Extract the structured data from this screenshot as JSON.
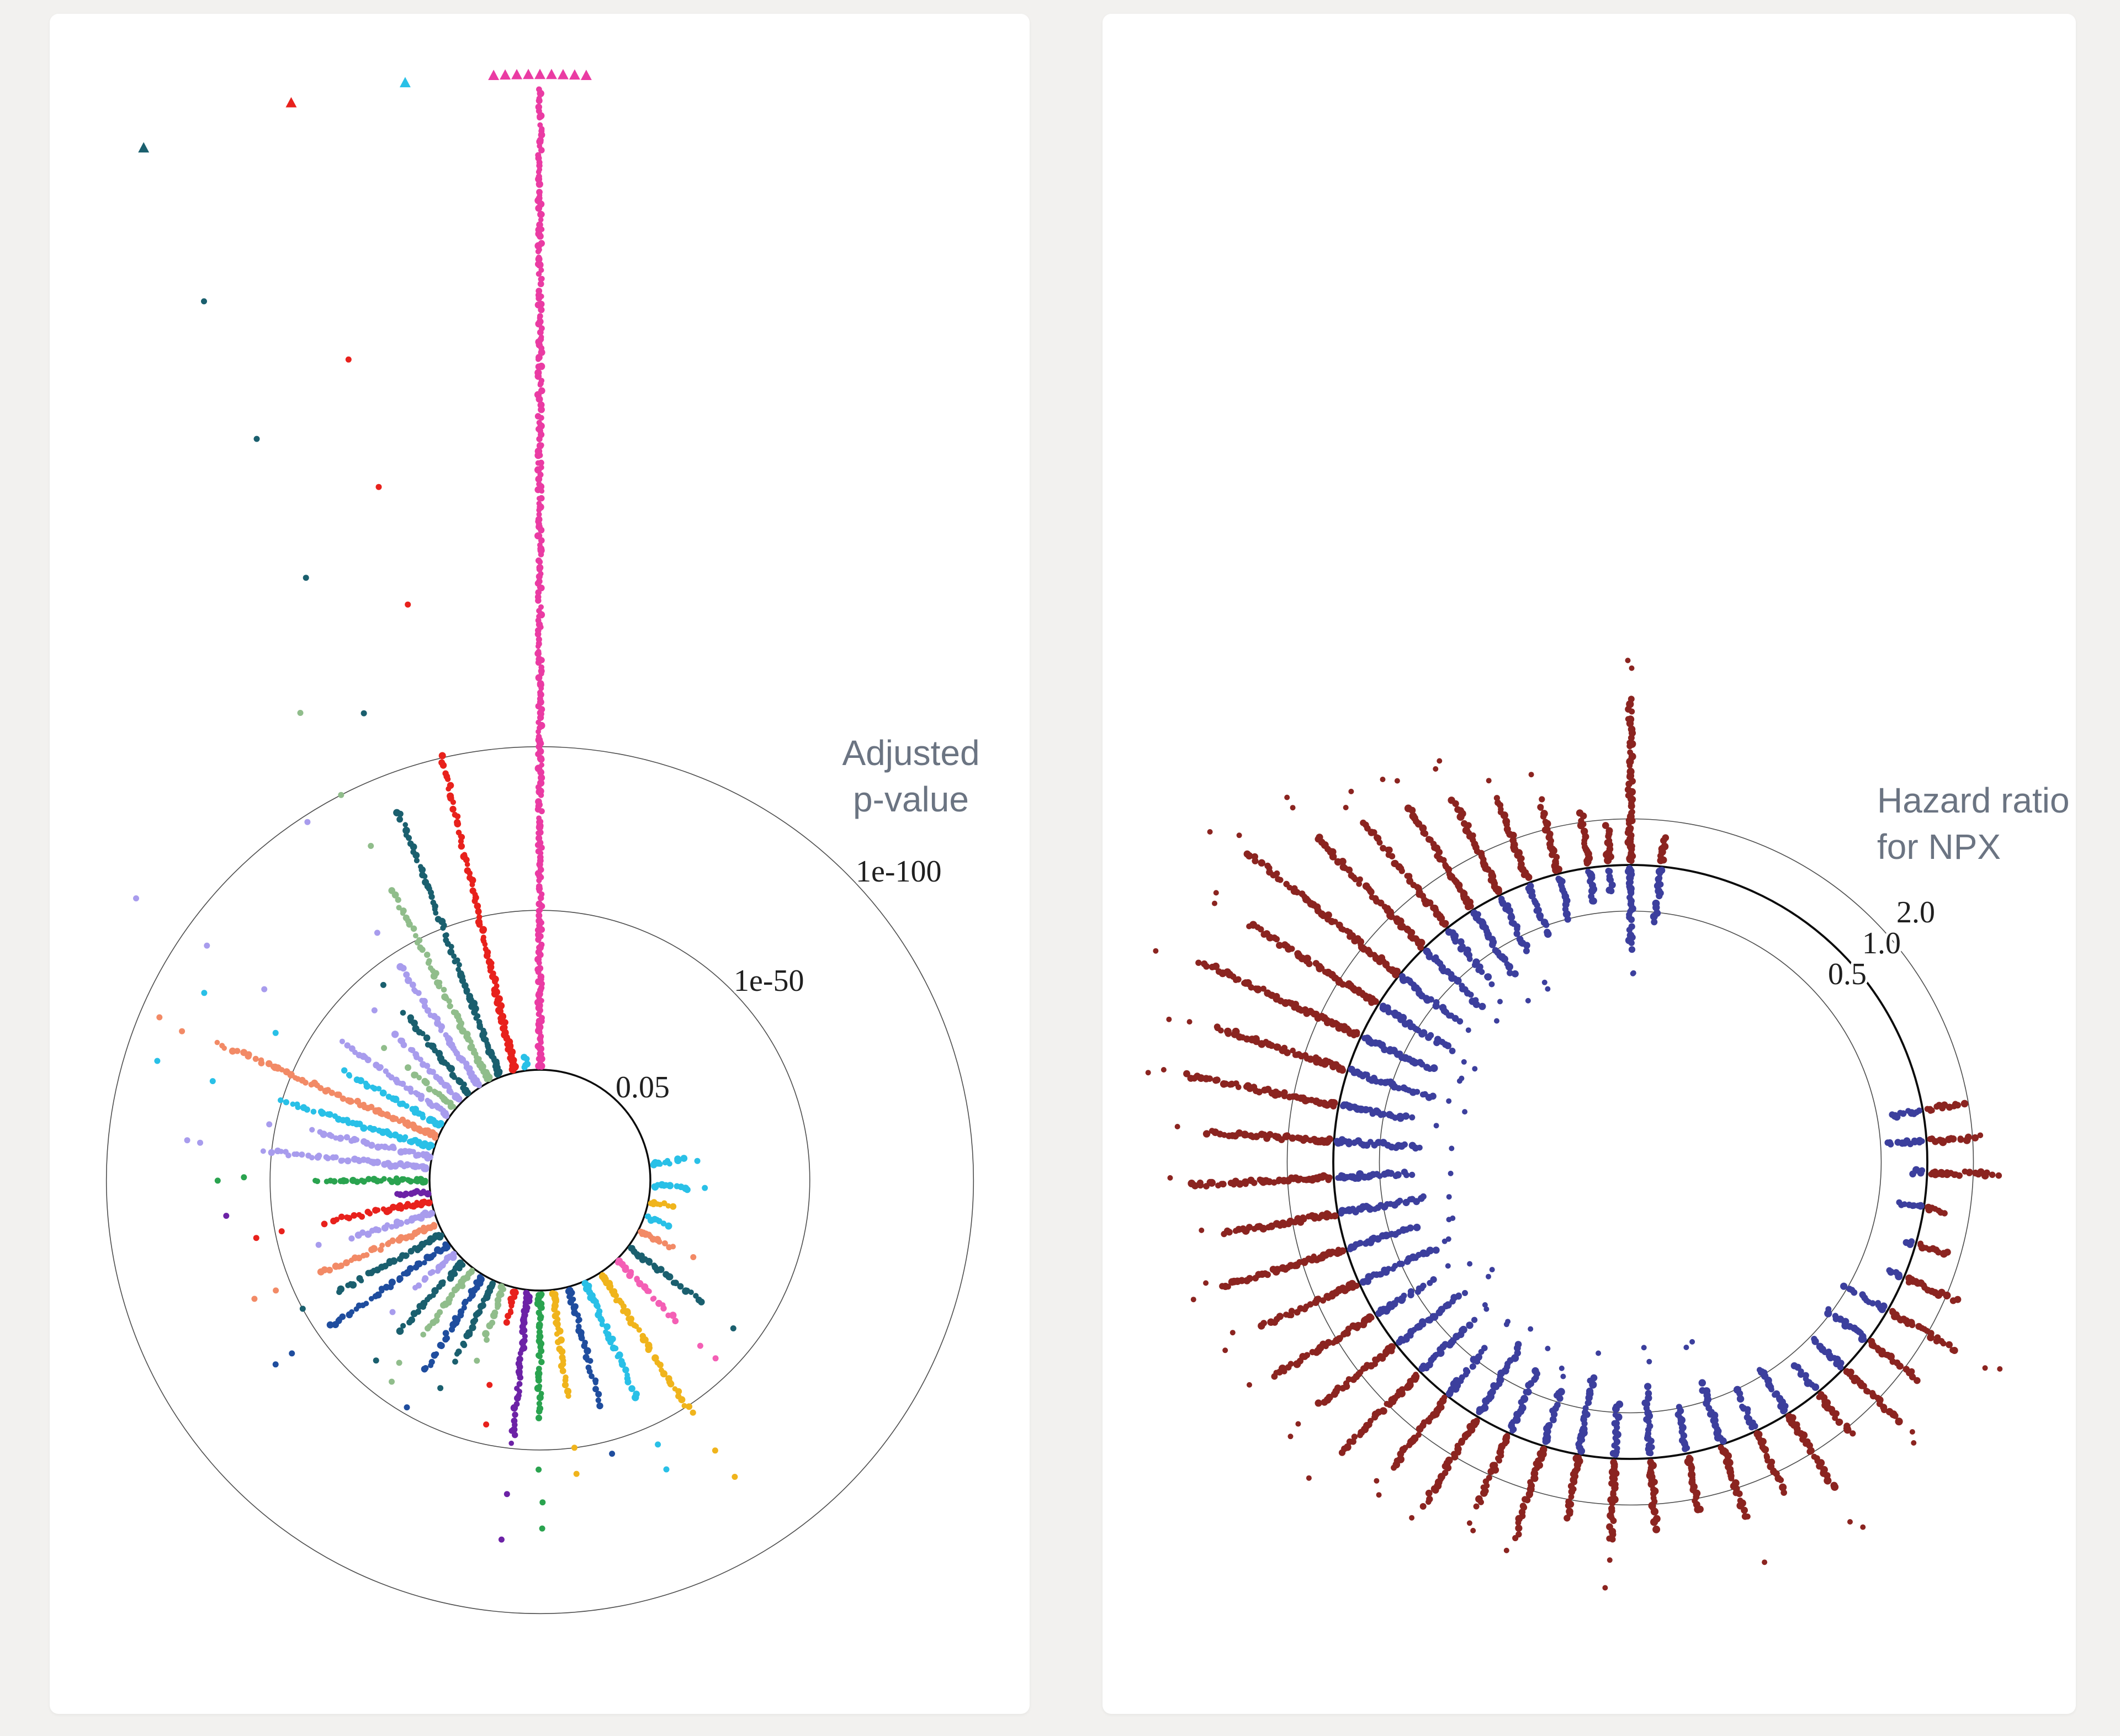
{
  "page": {
    "background_color": "#f2f1ef",
    "card_background_color": "#ffffff",
    "title_color": "#6b7482",
    "ring_label_color": "#1f1f1f"
  },
  "chart_data": [
    {
      "id": "adjusted-p-value-circular-manhattan",
      "type": "scatter",
      "subtype": "polar_circular_manhattan",
      "title": "Adjusted p-value",
      "title_lines": [
        "Adjusted",
        "p-value"
      ],
      "radial_axis": {
        "scale": "-log10(adjusted p-value), linear in log units, increasing outward",
        "rings": [
          {
            "label": "0.05",
            "neglog10p": 1.301,
            "emphasis": true
          },
          {
            "label": "1e-50",
            "neglog10p": 50,
            "emphasis": false
          },
          {
            "label": "1e-100",
            "neglog10p": 100,
            "emphasis": false
          }
        ],
        "clip_neglog10p": 305,
        "clip_marker": "triangle"
      },
      "legend_position": "upper-right inside panel",
      "grid": "concentric rings only",
      "palette": {
        "pink": "#ea3ba3",
        "pink2": "#f45fb5",
        "red": "#e8211c",
        "teal": "#1a5f6e",
        "sage": "#90bd8b",
        "lavender": "#a89ced",
        "cyan": "#29c0e7",
        "salmon": "#f28a66",
        "green": "#2aa34f",
        "purple": "#6c22a6",
        "navy": "#1f4d9e",
        "gold": "#f0b41c"
      },
      "rays": [
        {
          "angle": 0,
          "color": "pink",
          "max_logp": 300,
          "extra_logp": [],
          "clipped_points": 9
        },
        {
          "angle": 353,
          "color": "cyan",
          "max_logp": 6,
          "extra_logp": [],
          "clipped_points": 1
        },
        {
          "angle": 347,
          "color": "red",
          "max_logp": 100,
          "extra_logp": [
            148,
            185,
            225
          ],
          "clipped_points": 1
        },
        {
          "angle": 339,
          "color": "teal",
          "max_logp": 88,
          "extra_logp": [
            120,
            165,
            210,
            255
          ],
          "clipped_points": 1
        },
        {
          "angle": 333,
          "color": "sage",
          "max_logp": 66,
          "extra_logp": [
            82,
            100,
            128
          ],
          "clipped_points": 0
        },
        {
          "angle": 327,
          "color": "lavender",
          "max_logp": 45,
          "extra_logp": [
            58,
            98
          ],
          "clipped_points": 0
        },
        {
          "angle": 321,
          "color": "teal",
          "max_logp": 33,
          "extra_logp": [
            44
          ],
          "clipped_points": 0
        },
        {
          "angle": 315,
          "color": "lavender",
          "max_logp": 30,
          "extra_logp": [
            40
          ],
          "clipped_points": 0
        },
        {
          "angle": 310,
          "color": "sage",
          "max_logp": 20,
          "extra_logp": [
            30
          ],
          "clipped_points": 0
        },
        {
          "angle": 305,
          "color": "lavender",
          "max_logp": 42,
          "extra_logp": [
            70,
            92,
            118
          ],
          "clipped_points": 0
        },
        {
          "angle": 299,
          "color": "cyan",
          "max_logp": 36,
          "extra_logp": [
            60,
            85
          ],
          "clipped_points": 0
        },
        {
          "angle": 293,
          "color": "salmon",
          "max_logp": 74,
          "extra_logp": [
            86,
            94
          ],
          "clipped_points": 0
        },
        {
          "angle": 287,
          "color": "cyan",
          "max_logp": 50,
          "extra_logp": [
            72,
            90
          ],
          "clipped_points": 0
        },
        {
          "angle": 282,
          "color": "lavender",
          "max_logp": 38,
          "extra_logp": [
            52
          ],
          "clipped_points": 0
        },
        {
          "angle": 276,
          "color": "lavender",
          "max_logp": 52,
          "extra_logp": [
            72,
            76
          ],
          "clipped_points": 0
        },
        {
          "angle": 270,
          "color": "green",
          "max_logp": 36,
          "extra_logp": [
            58,
            66
          ],
          "clipped_points": 0
        },
        {
          "angle": 264,
          "color": "purple",
          "max_logp": 12,
          "extra_logp": [
            64
          ],
          "clipped_points": 0
        },
        {
          "angle": 259,
          "color": "red",
          "max_logp": 34,
          "extra_logp": [
            48,
            56
          ],
          "clipped_points": 0
        },
        {
          "angle": 253,
          "color": "lavender",
          "max_logp": 27,
          "extra_logp": [
            38
          ],
          "clipped_points": 0
        },
        {
          "angle": 247,
          "color": "salmon",
          "max_logp": 40,
          "extra_logp": [
            55,
            62
          ],
          "clipped_points": 0
        },
        {
          "angle": 241,
          "color": "teal",
          "max_logp": 38,
          "extra_logp": [
            50
          ],
          "clipped_points": 0
        },
        {
          "angle": 235,
          "color": "navy",
          "max_logp": 46,
          "extra_logp": [
            60,
            66
          ],
          "clipped_points": 0
        },
        {
          "angle": 229,
          "color": "lavender",
          "max_logp": 17,
          "extra_logp": [
            28
          ],
          "clipped_points": 0
        },
        {
          "angle": 223,
          "color": "teal",
          "max_logp": 30,
          "extra_logp": [
            42
          ],
          "clipped_points": 0
        },
        {
          "angle": 217,
          "color": "sage",
          "max_logp": 26,
          "extra_logp": [
            38,
            44
          ],
          "clipped_points": 0
        },
        {
          "angle": 211,
          "color": "navy",
          "max_logp": 36,
          "extra_logp": [
            48
          ],
          "clipped_points": 0
        },
        {
          "angle": 205,
          "color": "teal",
          "max_logp": 28,
          "extra_logp": [
            38
          ],
          "clipped_points": 0
        },
        {
          "angle": 199,
          "color": "sage",
          "max_logp": 18,
          "extra_logp": [
            26
          ],
          "clipped_points": 0
        },
        {
          "angle": 193,
          "color": "red",
          "max_logp": 12,
          "extra_logp": [
            32,
            44
          ],
          "clipped_points": 0
        },
        {
          "angle": 186,
          "color": "purple",
          "max_logp": 48,
          "extra_logp": [
            64,
            78
          ],
          "clipped_points": 0
        },
        {
          "angle": 180,
          "color": "green",
          "max_logp": 40,
          "extra_logp": [
            56,
            66,
            74
          ],
          "clipped_points": 0
        },
        {
          "angle": 173,
          "color": "gold",
          "max_logp": 34,
          "extra_logp": [
            50,
            58
          ],
          "clipped_points": 0
        },
        {
          "angle": 165,
          "color": "navy",
          "max_logp": 38,
          "extra_logp": [
            54
          ],
          "clipped_points": 0
        },
        {
          "angle": 156,
          "color": "cyan",
          "max_logp": 40,
          "extra_logp": [
            56,
            64
          ],
          "clipped_points": 0
        },
        {
          "angle": 147,
          "color": "gold",
          "max_logp": 52,
          "extra_logp": [
            66,
            76
          ],
          "clipped_points": 0
        },
        {
          "angle": 136,
          "color": "pink2",
          "max_logp": 27,
          "extra_logp": [
            38,
            44
          ],
          "clipped_points": 0
        },
        {
          "angle": 127,
          "color": "teal",
          "max_logp": 30,
          "extra_logp": [
            42
          ],
          "clipped_points": 0
        },
        {
          "angle": 117,
          "color": "salmon",
          "max_logp": 13,
          "extra_logp": [
            20
          ],
          "clipped_points": 0
        },
        {
          "angle": 109,
          "color": "cyan",
          "max_logp": 9,
          "extra_logp": [],
          "clipped_points": 0
        },
        {
          "angle": 101,
          "color": "gold",
          "max_logp": 9,
          "extra_logp": [],
          "clipped_points": 0
        },
        {
          "angle": 93,
          "color": "cyan",
          "max_logp": 13,
          "extra_logp": [
            18
          ],
          "clipped_points": 0
        },
        {
          "angle": 82,
          "color": "cyan",
          "max_logp": 12,
          "extra_logp": [
            16
          ],
          "clipped_points": 0
        }
      ]
    },
    {
      "id": "hazard-ratio-circular",
      "type": "scatter",
      "subtype": "polar_circular_hazard_ratio",
      "title": "Hazard ratio for NPX",
      "title_lines": [
        "Hazard ratio",
        "for NPX"
      ],
      "radial_axis": {
        "scale": "log2(hazard ratio), 1.0 on heavy ring, >1 outward, <1 inward",
        "rings": [
          {
            "label": "0.5",
            "hr": 0.5,
            "emphasis": false
          },
          {
            "label": "1.0",
            "hr": 1.0,
            "emphasis": true
          },
          {
            "label": "2.0",
            "hr": 2.0,
            "emphasis": false
          }
        ]
      },
      "colors": {
        "increased_risk": "#8b2420",
        "decreased_risk": "#3c3f9d"
      },
      "rays": [
        {
          "angle": 0,
          "hr_max": 11.5,
          "hr_min": 0.29
        },
        {
          "angle": 6,
          "hr_max": 1.5,
          "hr_min": 0.45
        },
        {
          "angle": 80,
          "hr_max": 1.8,
          "hr_min": 0.62
        },
        {
          "angle": 86,
          "hr_max": 2.1,
          "hr_min": 0.55
        },
        {
          "angle": 92,
          "hr_max": 2.8,
          "hr_min": 0.85
        },
        {
          "angle": 99,
          "hr_max": 1.35,
          "hr_min": 0.7
        },
        {
          "angle": 106,
          "hr_max": 1.6,
          "hr_min": 0.9
        },
        {
          "angle": 113,
          "hr_max": 2.3,
          "hr_min": 0.8
        },
        {
          "angle": 120,
          "hr_max": 3.2,
          "hr_min": 0.5
        },
        {
          "angle": 127,
          "hr_max": 2.5,
          "hr_min": 0.48
        },
        {
          "angle": 134,
          "hr_max": 3.0,
          "hr_min": 0.55
        },
        {
          "angle": 141,
          "hr_max": 2.2,
          "hr_min": 0.6
        },
        {
          "angle": 148,
          "hr_max": 3.6,
          "hr_min": 0.45
        },
        {
          "angle": 155,
          "hr_max": 2.6,
          "hr_min": 0.52
        },
        {
          "angle": 162,
          "hr_max": 3.1,
          "hr_min": 0.4
        },
        {
          "angle": 169,
          "hr_max": 2.4,
          "hr_min": 0.5
        },
        {
          "angle": 176,
          "hr_max": 2.8,
          "hr_min": 0.36
        },
        {
          "angle": 183,
          "hr_max": 3.4,
          "hr_min": 0.44
        },
        {
          "angle": 190,
          "hr_max": 2.6,
          "hr_min": 0.32
        },
        {
          "angle": 197,
          "hr_max": 4.0,
          "hr_min": 0.42
        },
        {
          "angle": 204,
          "hr_max": 3.2,
          "hr_min": 0.36
        },
        {
          "angle": 211,
          "hr_max": 4.6,
          "hr_min": 0.3
        },
        {
          "angle": 218,
          "hr_max": 3.8,
          "hr_min": 0.42
        },
        {
          "angle": 225,
          "hr_max": 5.2,
          "hr_min": 0.34
        },
        {
          "angle": 232,
          "hr_max": 4.2,
          "hr_min": 0.28
        },
        {
          "angle": 239,
          "hr_max": 6.0,
          "hr_min": 0.38
        },
        {
          "angle": 246,
          "hr_max": 4.8,
          "hr_min": 0.3
        },
        {
          "angle": 253,
          "hr_max": 7.0,
          "hr_min": 0.34
        },
        {
          "angle": 260,
          "hr_max": 5.6,
          "hr_min": 0.27
        },
        {
          "angle": 267,
          "hr_max": 8.5,
          "hr_min": 0.32
        },
        {
          "angle": 274,
          "hr_max": 6.5,
          "hr_min": 0.29
        },
        {
          "angle": 281,
          "hr_max": 10.0,
          "hr_min": 0.34
        },
        {
          "angle": 288,
          "hr_max": 8.0,
          "hr_min": 0.27
        },
        {
          "angle": 295,
          "hr_max": 14.0,
          "hr_min": 0.31
        },
        {
          "angle": 302,
          "hr_max": 9.5,
          "hr_min": 0.28
        },
        {
          "angle": 309,
          "hr_max": 18.0,
          "hr_min": 0.33
        },
        {
          "angle": 316,
          "hr_max": 10.0,
          "hr_min": 0.3
        },
        {
          "angle": 322,
          "hr_max": 7.5,
          "hr_min": 0.36
        },
        {
          "angle": 328,
          "hr_max": 6.0,
          "hr_min": 0.33
        },
        {
          "angle": 334,
          "hr_max": 4.8,
          "hr_min": 0.4
        },
        {
          "angle": 340,
          "hr_max": 3.8,
          "hr_min": 0.45
        },
        {
          "angle": 346,
          "hr_max": 3.0,
          "hr_min": 0.52
        },
        {
          "angle": 352,
          "hr_max": 2.3,
          "hr_min": 0.6
        },
        {
          "angle": 356,
          "hr_max": 1.8,
          "hr_min": 0.7
        }
      ]
    }
  ]
}
